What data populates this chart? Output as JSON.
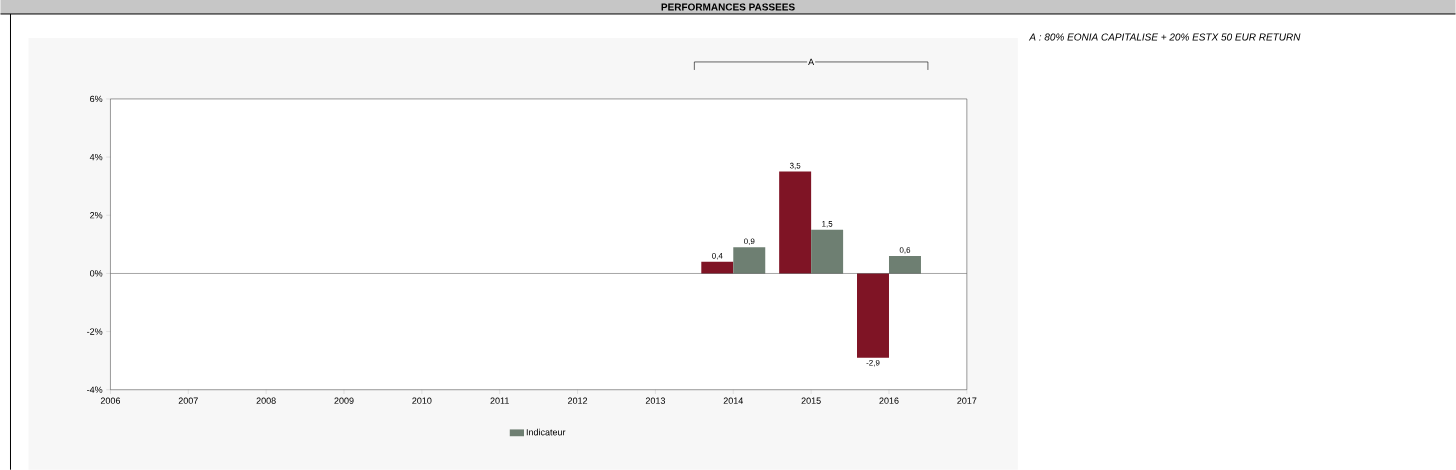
{
  "chart_data": {
    "type": "bar",
    "title": "PERFORMANCES PASSEES",
    "x": [
      2014,
      2015,
      2016
    ],
    "series": [
      {
        "color": "#7f1425",
        "values": [
          0.4,
          3.5,
          -2.9
        ],
        "value_labels": [
          "0,4",
          "3,5",
          "-2,9"
        ]
      },
      {
        "name": "Indicateur",
        "color": "#6e7f72",
        "values": [
          0.9,
          1.5,
          0.6
        ],
        "value_labels": [
          "0,9",
          "1,5",
          "0,6"
        ]
      }
    ],
    "xlim": [
      2006,
      2017
    ],
    "xticks": [
      2006,
      2007,
      2008,
      2009,
      2010,
      2011,
      2012,
      2013,
      2014,
      2015,
      2016,
      2017
    ],
    "ylim": [
      -4,
      6
    ],
    "yticks": [
      {
        "value": -4,
        "label": "-4%"
      },
      {
        "value": -2,
        "label": "-2%"
      },
      {
        "value": 0,
        "label": "0%"
      },
      {
        "value": 2,
        "label": "2%"
      },
      {
        "value": 4,
        "label": "4%"
      },
      {
        "value": 6,
        "label": "6%"
      }
    ],
    "ref_lines": [
      {
        "axis": "y",
        "value": 0
      }
    ],
    "annotations": [
      "A",
      "A : 80% EONIA CAPITALISE + 20% ESTX 50 EUR RETURN"
    ],
    "legend": "bottom",
    "grid": false
  }
}
